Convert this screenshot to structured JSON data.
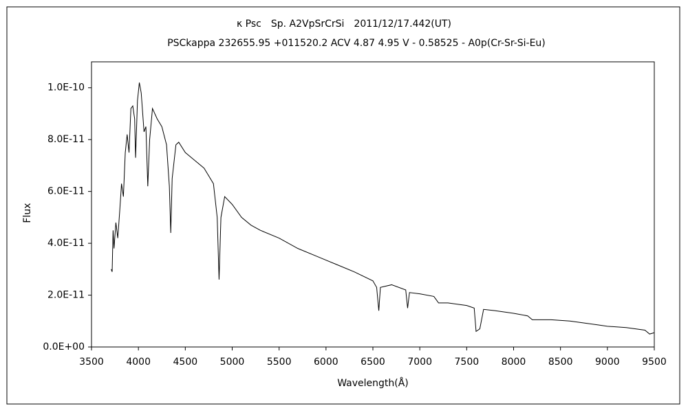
{
  "chart_data": {
    "type": "line",
    "title": "κ Psc　Sp. A2VpSrCrSi　2011/12/17.442(UT)",
    "subtitle": "PSCkappa 232655.95 +011520.2 ACV 4.87 4.95 V - 0.58525 - A0p(Cr-Sr-Si-Eu)",
    "xlabel": "Wavelength(Å)",
    "ylabel": "Flux",
    "xlim": [
      3500,
      9500
    ],
    "xticks": [
      3500,
      4000,
      4500,
      5000,
      5500,
      6000,
      6500,
      7000,
      7500,
      8000,
      8500,
      9000,
      9500
    ],
    "ylim": [
      0,
      1.1e-10
    ],
    "yticks": [
      {
        "value": 0,
        "label": "0.0E+00"
      },
      {
        "value": 2e-11,
        "label": "2.0E-11"
      },
      {
        "value": 4e-11,
        "label": "4.0E-11"
      },
      {
        "value": 6e-11,
        "label": "6.0E-11"
      },
      {
        "value": 8e-11,
        "label": "8.0E-11"
      },
      {
        "value": 1e-10,
        "label": "1.0E-10"
      }
    ],
    "grid": false,
    "series": [
      {
        "name": "Flux",
        "color": "#000000",
        "x": [
          3710,
          3720,
          3730,
          3740,
          3760,
          3780,
          3800,
          3820,
          3840,
          3860,
          3880,
          3900,
          3920,
          3940,
          3960,
          3970,
          3990,
          4010,
          4030,
          4060,
          4080,
          4100,
          4120,
          4150,
          4200,
          4250,
          4300,
          4330,
          4345,
          4360,
          4400,
          4430,
          4500,
          4600,
          4700,
          4800,
          4840,
          4860,
          4880,
          4920,
          5000,
          5100,
          5200,
          5300,
          5500,
          5700,
          5900,
          6100,
          6300,
          6500,
          6540,
          6563,
          6580,
          6700,
          6850,
          6870,
          6890,
          7000,
          7150,
          7200,
          7300,
          7500,
          7580,
          7600,
          7640,
          7680,
          7800,
          8000,
          8150,
          8200,
          8400,
          8600,
          8800,
          8900,
          9000,
          9200,
          9400,
          9450,
          9500
        ],
        "values": [
          3e-11,
          2.9e-11,
          4.5e-11,
          3.8e-11,
          4.8e-11,
          4.2e-11,
          5.2e-11,
          6.3e-11,
          5.8e-11,
          7.5e-11,
          8.2e-11,
          7.5e-11,
          9.2e-11,
          9.3e-11,
          8.8e-11,
          7.3e-11,
          9.5e-11,
          1.02e-10,
          9.8e-11,
          8.3e-11,
          8.5e-11,
          6.2e-11,
          8e-11,
          9.2e-11,
          8.8e-11,
          8.5e-11,
          7.8e-11,
          6.2e-11,
          4.4e-11,
          6.5e-11,
          7.8e-11,
          7.9e-11,
          7.5e-11,
          7.2e-11,
          6.9e-11,
          6.3e-11,
          5e-11,
          2.6e-11,
          5e-11,
          5.8e-11,
          5.5e-11,
          5e-11,
          4.7e-11,
          4.5e-11,
          4.2e-11,
          3.8e-11,
          3.5e-11,
          3.2e-11,
          2.9e-11,
          2.55e-11,
          2.3e-11,
          1.4e-11,
          2.3e-11,
          2.4e-11,
          2.2e-11,
          1.5e-11,
          2.1e-11,
          2.05e-11,
          1.95e-11,
          1.7e-11,
          1.7e-11,
          1.6e-11,
          1.5e-11,
          6e-12,
          7e-12,
          1.45e-11,
          1.4e-11,
          1.3e-11,
          1.2e-11,
          1.05e-11,
          1.05e-11,
          1e-11,
          9e-12,
          8.5e-12,
          8e-12,
          7.5e-12,
          6.5e-12,
          5e-12,
          5.5e-12
        ]
      }
    ]
  }
}
